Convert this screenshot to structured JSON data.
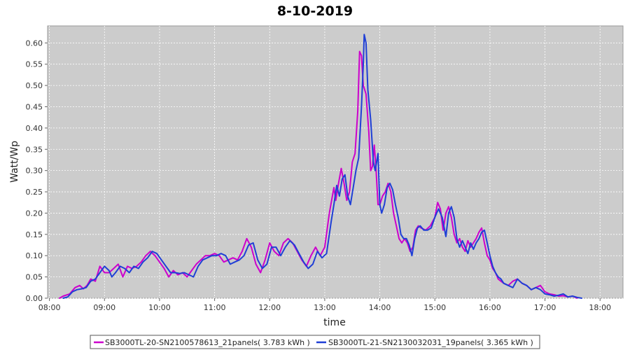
{
  "chart_data": {
    "type": "line",
    "title": "8-10-2019",
    "xlabel": "time",
    "ylabel": "Watt/Wp",
    "xlim": [
      "07:58",
      "18:25"
    ],
    "ylim": [
      0.0,
      0.64
    ],
    "x_ticks": [
      "08:00",
      "09:00",
      "10:00",
      "11:00",
      "12:00",
      "13:00",
      "14:00",
      "15:00",
      "16:00",
      "17:00",
      "18:00"
    ],
    "y_ticks": [
      "0.00",
      "0.05",
      "0.10",
      "0.15",
      "0.20",
      "0.25",
      "0.30",
      "0.35",
      "0.40",
      "0.45",
      "0.50",
      "0.55",
      "0.60"
    ],
    "grid": true,
    "legend_position": "bottom",
    "series": [
      {
        "name": "SB3000TL-20-SN2100578613_21panels( 3.783 kWh )",
        "color": "#cc00cc",
        "points": [
          [
            "08:11",
            0.0
          ],
          [
            "08:15",
            0.005
          ],
          [
            "08:22",
            0.01
          ],
          [
            "08:28",
            0.025
          ],
          [
            "08:33",
            0.03
          ],
          [
            "08:37",
            0.022
          ],
          [
            "08:41",
            0.03
          ],
          [
            "08:45",
            0.045
          ],
          [
            "08:50",
            0.04
          ],
          [
            "08:55",
            0.075
          ],
          [
            "09:00",
            0.06
          ],
          [
            "09:05",
            0.06
          ],
          [
            "09:10",
            0.07
          ],
          [
            "09:15",
            0.08
          ],
          [
            "09:20",
            0.05
          ],
          [
            "09:25",
            0.075
          ],
          [
            "09:30",
            0.07
          ],
          [
            "09:35",
            0.075
          ],
          [
            "09:40",
            0.085
          ],
          [
            "09:45",
            0.1
          ],
          [
            "09:50",
            0.11
          ],
          [
            "09:55",
            0.1
          ],
          [
            "10:00",
            0.085
          ],
          [
            "10:05",
            0.07
          ],
          [
            "10:10",
            0.05
          ],
          [
            "10:15",
            0.065
          ],
          [
            "10:20",
            0.055
          ],
          [
            "10:25",
            0.06
          ],
          [
            "10:30",
            0.05
          ],
          [
            "10:35",
            0.065
          ],
          [
            "10:40",
            0.08
          ],
          [
            "10:45",
            0.09
          ],
          [
            "10:50",
            0.1
          ],
          [
            "10:55",
            0.1
          ],
          [
            "11:00",
            0.105
          ],
          [
            "11:05",
            0.1
          ],
          [
            "11:10",
            0.085
          ],
          [
            "11:15",
            0.09
          ],
          [
            "11:20",
            0.095
          ],
          [
            "11:25",
            0.09
          ],
          [
            "11:30",
            0.11
          ],
          [
            "11:35",
            0.14
          ],
          [
            "11:40",
            0.12
          ],
          [
            "11:45",
            0.08
          ],
          [
            "11:50",
            0.06
          ],
          [
            "11:55",
            0.09
          ],
          [
            "12:00",
            0.13
          ],
          [
            "12:05",
            0.11
          ],
          [
            "12:10",
            0.1
          ],
          [
            "12:15",
            0.13
          ],
          [
            "12:20",
            0.14
          ],
          [
            "12:25",
            0.13
          ],
          [
            "12:30",
            0.11
          ],
          [
            "12:35",
            0.09
          ],
          [
            "12:40",
            0.075
          ],
          [
            "12:45",
            0.1
          ],
          [
            "12:50",
            0.12
          ],
          [
            "12:55",
            0.1
          ],
          [
            "13:00",
            0.12
          ],
          [
            "13:05",
            0.2
          ],
          [
            "13:10",
            0.26
          ],
          [
            "13:12",
            0.23
          ],
          [
            "13:15",
            0.27
          ],
          [
            "13:18",
            0.305
          ],
          [
            "13:21",
            0.27
          ],
          [
            "13:24",
            0.23
          ],
          [
            "13:27",
            0.25
          ],
          [
            "13:30",
            0.32
          ],
          [
            "13:33",
            0.34
          ],
          [
            "13:36",
            0.44
          ],
          [
            "13:38",
            0.58
          ],
          [
            "13:40",
            0.57
          ],
          [
            "13:42",
            0.5
          ],
          [
            "13:45",
            0.48
          ],
          [
            "13:48",
            0.39
          ],
          [
            "13:50",
            0.3
          ],
          [
            "13:52",
            0.31
          ],
          [
            "13:54",
            0.36
          ],
          [
            "13:56",
            0.3
          ],
          [
            "13:58",
            0.22
          ],
          [
            "14:00",
            0.22
          ],
          [
            "14:03",
            0.24
          ],
          [
            "14:06",
            0.25
          ],
          [
            "14:09",
            0.27
          ],
          [
            "14:12",
            0.25
          ],
          [
            "14:15",
            0.2
          ],
          [
            "14:18",
            0.17
          ],
          [
            "14:21",
            0.14
          ],
          [
            "14:24",
            0.13
          ],
          [
            "14:27",
            0.14
          ],
          [
            "14:30",
            0.13
          ],
          [
            "14:33",
            0.11
          ],
          [
            "14:36",
            0.12
          ],
          [
            "14:39",
            0.16
          ],
          [
            "14:42",
            0.17
          ],
          [
            "14:45",
            0.165
          ],
          [
            "14:50",
            0.16
          ],
          [
            "14:55",
            0.17
          ],
          [
            "15:00",
            0.19
          ],
          [
            "15:03",
            0.225
          ],
          [
            "15:06",
            0.21
          ],
          [
            "15:09",
            0.16
          ],
          [
            "15:12",
            0.2
          ],
          [
            "15:15",
            0.215
          ],
          [
            "15:18",
            0.19
          ],
          [
            "15:21",
            0.15
          ],
          [
            "15:24",
            0.13
          ],
          [
            "15:27",
            0.14
          ],
          [
            "15:30",
            0.12
          ],
          [
            "15:33",
            0.11
          ],
          [
            "15:36",
            0.135
          ],
          [
            "15:39",
            0.12
          ],
          [
            "15:42",
            0.13
          ],
          [
            "15:45",
            0.14
          ],
          [
            "15:48",
            0.155
          ],
          [
            "15:51",
            0.165
          ],
          [
            "15:54",
            0.13
          ],
          [
            "15:57",
            0.1
          ],
          [
            "16:00",
            0.09
          ],
          [
            "16:03",
            0.07
          ],
          [
            "16:06",
            0.06
          ],
          [
            "16:09",
            0.045
          ],
          [
            "16:12",
            0.04
          ],
          [
            "16:15",
            0.035
          ],
          [
            "16:20",
            0.03
          ],
          [
            "16:25",
            0.04
          ],
          [
            "16:30",
            0.045
          ],
          [
            "16:35",
            0.035
          ],
          [
            "16:40",
            0.03
          ],
          [
            "16:45",
            0.02
          ],
          [
            "16:50",
            0.025
          ],
          [
            "16:55",
            0.03
          ],
          [
            "17:00",
            0.015
          ],
          [
            "17:05",
            0.01
          ],
          [
            "17:10",
            0.008
          ],
          [
            "17:15",
            0.005
          ],
          [
            "17:20",
            0.006
          ],
          [
            "17:25",
            0.003
          ],
          [
            "17:30",
            0.005
          ],
          [
            "17:35",
            0.0
          ]
        ]
      },
      {
        "name": "SB3000TL-21-SN2130032031_19panels( 3.365 kWh )",
        "color": "#1f3fd6",
        "points": [
          [
            "08:15",
            0.0
          ],
          [
            "08:20",
            0.003
          ],
          [
            "08:25",
            0.015
          ],
          [
            "08:30",
            0.02
          ],
          [
            "08:35",
            0.022
          ],
          [
            "08:40",
            0.025
          ],
          [
            "08:45",
            0.04
          ],
          [
            "08:50",
            0.045
          ],
          [
            "08:55",
            0.06
          ],
          [
            "09:00",
            0.075
          ],
          [
            "09:05",
            0.065
          ],
          [
            "09:08",
            0.05
          ],
          [
            "09:12",
            0.06
          ],
          [
            "09:17",
            0.075
          ],
          [
            "09:22",
            0.07
          ],
          [
            "09:27",
            0.06
          ],
          [
            "09:32",
            0.075
          ],
          [
            "09:37",
            0.07
          ],
          [
            "09:42",
            0.085
          ],
          [
            "09:47",
            0.095
          ],
          [
            "09:52",
            0.11
          ],
          [
            "09:57",
            0.105
          ],
          [
            "10:02",
            0.09
          ],
          [
            "10:07",
            0.075
          ],
          [
            "10:12",
            0.06
          ],
          [
            "10:17",
            0.06
          ],
          [
            "10:22",
            0.058
          ],
          [
            "10:27",
            0.06
          ],
          [
            "10:32",
            0.055
          ],
          [
            "10:37",
            0.05
          ],
          [
            "10:42",
            0.075
          ],
          [
            "10:47",
            0.09
          ],
          [
            "10:52",
            0.095
          ],
          [
            "10:57",
            0.1
          ],
          [
            "11:02",
            0.1
          ],
          [
            "11:07",
            0.105
          ],
          [
            "11:12",
            0.1
          ],
          [
            "11:17",
            0.08
          ],
          [
            "11:22",
            0.085
          ],
          [
            "11:27",
            0.09
          ],
          [
            "11:32",
            0.1
          ],
          [
            "11:37",
            0.125
          ],
          [
            "11:42",
            0.13
          ],
          [
            "11:47",
            0.09
          ],
          [
            "11:52",
            0.07
          ],
          [
            "11:57",
            0.08
          ],
          [
            "12:02",
            0.12
          ],
          [
            "12:07",
            0.12
          ],
          [
            "12:12",
            0.1
          ],
          [
            "12:17",
            0.12
          ],
          [
            "12:22",
            0.135
          ],
          [
            "12:27",
            0.125
          ],
          [
            "12:32",
            0.105
          ],
          [
            "12:37",
            0.085
          ],
          [
            "12:42",
            0.07
          ],
          [
            "12:47",
            0.08
          ],
          [
            "12:52",
            0.11
          ],
          [
            "12:57",
            0.095
          ],
          [
            "13:02",
            0.105
          ],
          [
            "13:07",
            0.18
          ],
          [
            "13:10",
            0.22
          ],
          [
            "13:13",
            0.265
          ],
          [
            "13:16",
            0.24
          ],
          [
            "13:19",
            0.28
          ],
          [
            "13:22",
            0.29
          ],
          [
            "13:25",
            0.24
          ],
          [
            "13:28",
            0.22
          ],
          [
            "13:31",
            0.26
          ],
          [
            "13:34",
            0.3
          ],
          [
            "13:37",
            0.33
          ],
          [
            "13:40",
            0.45
          ],
          [
            "13:42",
            0.55
          ],
          [
            "13:43",
            0.62
          ],
          [
            "13:45",
            0.6
          ],
          [
            "13:47",
            0.49
          ],
          [
            "13:50",
            0.42
          ],
          [
            "13:53",
            0.32
          ],
          [
            "13:55",
            0.3
          ],
          [
            "13:58",
            0.34
          ],
          [
            "14:00",
            0.22
          ],
          [
            "14:02",
            0.2
          ],
          [
            "14:05",
            0.22
          ],
          [
            "14:08",
            0.26
          ],
          [
            "14:11",
            0.27
          ],
          [
            "14:14",
            0.255
          ],
          [
            "14:17",
            0.22
          ],
          [
            "14:20",
            0.19
          ],
          [
            "14:23",
            0.15
          ],
          [
            "14:26",
            0.14
          ],
          [
            "14:29",
            0.14
          ],
          [
            "14:32",
            0.125
          ],
          [
            "14:35",
            0.1
          ],
          [
            "14:38",
            0.14
          ],
          [
            "14:41",
            0.165
          ],
          [
            "14:44",
            0.17
          ],
          [
            "14:48",
            0.16
          ],
          [
            "14:52",
            0.16
          ],
          [
            "14:56",
            0.165
          ],
          [
            "15:00",
            0.19
          ],
          [
            "15:04",
            0.21
          ],
          [
            "15:08",
            0.19
          ],
          [
            "15:12",
            0.145
          ],
          [
            "15:15",
            0.2
          ],
          [
            "15:18",
            0.215
          ],
          [
            "15:21",
            0.19
          ],
          [
            "15:24",
            0.14
          ],
          [
            "15:27",
            0.12
          ],
          [
            "15:30",
            0.135
          ],
          [
            "15:33",
            0.12
          ],
          [
            "15:36",
            0.105
          ],
          [
            "15:39",
            0.13
          ],
          [
            "15:42",
            0.115
          ],
          [
            "15:45",
            0.13
          ],
          [
            "15:48",
            0.14
          ],
          [
            "15:51",
            0.155
          ],
          [
            "15:54",
            0.16
          ],
          [
            "15:57",
            0.13
          ],
          [
            "16:00",
            0.1
          ],
          [
            "16:03",
            0.075
          ],
          [
            "16:06",
            0.06
          ],
          [
            "16:09",
            0.05
          ],
          [
            "16:12",
            0.045
          ],
          [
            "16:15",
            0.035
          ],
          [
            "16:20",
            0.03
          ],
          [
            "16:25",
            0.025
          ],
          [
            "16:30",
            0.045
          ],
          [
            "16:35",
            0.035
          ],
          [
            "16:40",
            0.03
          ],
          [
            "16:45",
            0.02
          ],
          [
            "16:50",
            0.025
          ],
          [
            "16:55",
            0.02
          ],
          [
            "17:00",
            0.01
          ],
          [
            "17:05",
            0.008
          ],
          [
            "17:10",
            0.005
          ],
          [
            "17:15",
            0.007
          ],
          [
            "17:20",
            0.01
          ],
          [
            "17:25",
            0.003
          ],
          [
            "17:30",
            0.005
          ],
          [
            "17:35",
            0.002
          ],
          [
            "17:40",
            0.0
          ]
        ]
      }
    ]
  }
}
